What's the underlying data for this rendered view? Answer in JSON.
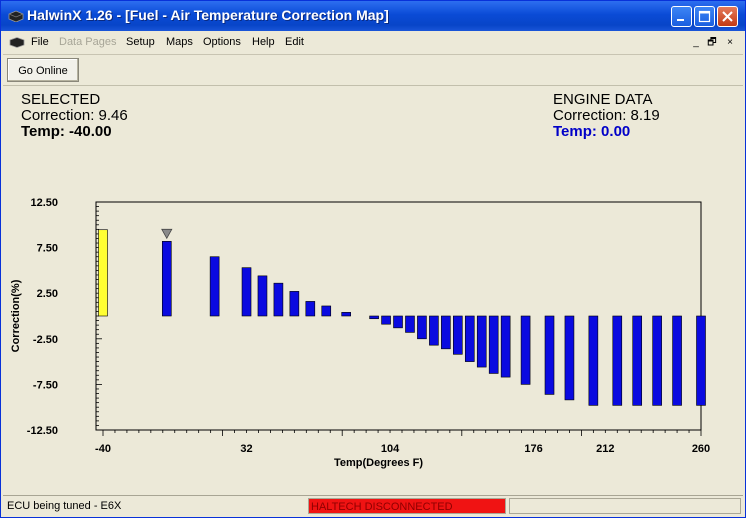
{
  "window": {
    "title": "HalwinX 1.26 - [Fuel - Air Temperature Correction Map]",
    "minimize_label": "_",
    "maximize_label": "□",
    "close_label": "✕"
  },
  "menu": {
    "items": [
      {
        "label": "File",
        "enabled": true
      },
      {
        "label": "Data Pages",
        "enabled": false
      },
      {
        "label": "Setup",
        "enabled": true
      },
      {
        "label": "Maps",
        "enabled": true
      },
      {
        "label": "Options",
        "enabled": true
      },
      {
        "label": "Help",
        "enabled": true
      },
      {
        "label": "Edit",
        "enabled": true
      }
    ],
    "mdi_minimize": "_",
    "mdi_restore": "🗗",
    "mdi_close": "×"
  },
  "toolbar": {
    "go_online_label": "Go Online"
  },
  "selected": {
    "heading": "SELECTED",
    "correction": "Correction: 9.46",
    "temp": "Temp: -40.00"
  },
  "engine": {
    "heading": "ENGINE DATA",
    "correction": "Correction: 8.19",
    "temp": "Temp: 0.00",
    "temp_color": "#0000c8"
  },
  "colors": {
    "bar": "#0a0ae0",
    "selected_bar": "#ffff33",
    "marker": "#8a8a8a"
  },
  "status": {
    "left": "ECU being tuned - E6X",
    "middle": "HALTECH DISCONNECTED",
    "middle_color": "#f01313"
  },
  "chart_data": {
    "type": "bar",
    "xlabel": "Temp(Degrees F)",
    "ylabel": "Correction(%)",
    "xlim": [
      -40,
      260
    ],
    "ylim": [
      -12.5,
      12.5
    ],
    "x_ticks": [
      "-40",
      "32",
      "104",
      "176",
      "212",
      "260"
    ],
    "y_ticks": [
      "12.50",
      "7.50",
      "2.50",
      "-2.50",
      "-7.50",
      "-12.50"
    ],
    "x": [
      -40,
      -8,
      16,
      32,
      40,
      48,
      56,
      64,
      72,
      82,
      96,
      102,
      108,
      114,
      120,
      126,
      132,
      138,
      144,
      150,
      156,
      162,
      172,
      184,
      194,
      206,
      218,
      228,
      238,
      248,
      260
    ],
    "values": [
      9.46,
      8.19,
      6.5,
      5.3,
      4.4,
      3.6,
      2.7,
      1.6,
      1.1,
      0.4,
      -0.3,
      -0.9,
      -1.3,
      -1.8,
      -2.5,
      -3.2,
      -3.6,
      -4.2,
      -5.0,
      -5.6,
      -6.3,
      -6.7,
      -7.5,
      -8.6,
      -9.2,
      -9.8,
      -9.8,
      -9.8,
      -9.8,
      -9.8,
      -9.8
    ],
    "selected_index": 0,
    "engine_index": 1
  }
}
